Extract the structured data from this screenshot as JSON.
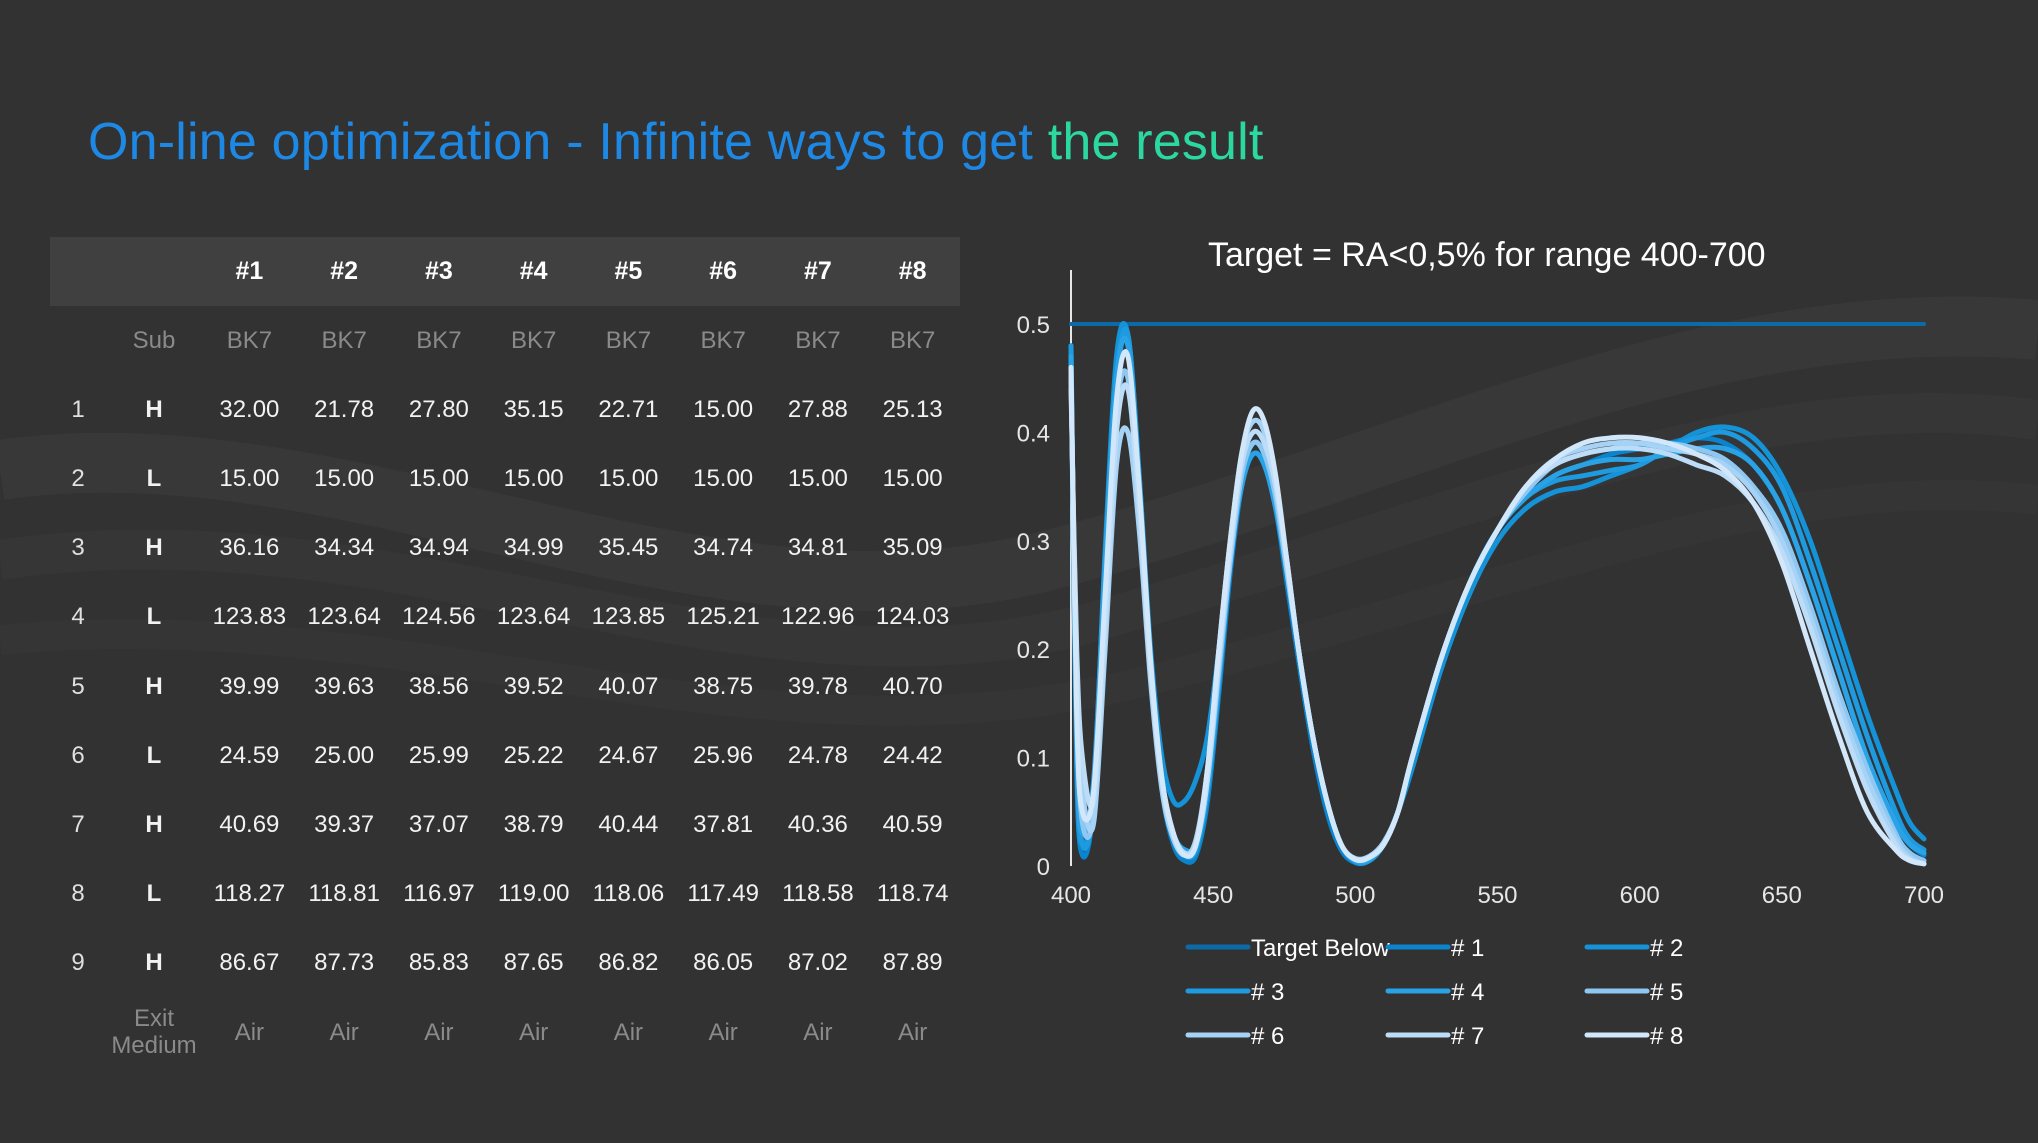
{
  "slide": {
    "title_main": "On-line optimization - Infinite ways to get ",
    "title_accent": "the result"
  },
  "table": {
    "headers": [
      "",
      "",
      "#1",
      "#2",
      "#3",
      "#4",
      "#5",
      "#6",
      "#7",
      "#8"
    ],
    "substrate": {
      "label": "Sub",
      "values": [
        "BK7",
        "BK7",
        "BK7",
        "BK7",
        "BK7",
        "BK7",
        "BK7",
        "BK7"
      ]
    },
    "layers": [
      {
        "num": "1",
        "material": "H",
        "values": [
          "32.00",
          "21.78",
          "27.80",
          "35.15",
          "22.71",
          "15.00",
          "27.88",
          "25.13"
        ]
      },
      {
        "num": "2",
        "material": "L",
        "values": [
          "15.00",
          "15.00",
          "15.00",
          "15.00",
          "15.00",
          "15.00",
          "15.00",
          "15.00"
        ]
      },
      {
        "num": "3",
        "material": "H",
        "values": [
          "36.16",
          "34.34",
          "34.94",
          "34.99",
          "35.45",
          "34.74",
          "34.81",
          "35.09"
        ]
      },
      {
        "num": "4",
        "material": "L",
        "values": [
          "123.83",
          "123.64",
          "124.56",
          "123.64",
          "123.85",
          "125.21",
          "122.96",
          "124.03"
        ]
      },
      {
        "num": "5",
        "material": "H",
        "values": [
          "39.99",
          "39.63",
          "38.56",
          "39.52",
          "40.07",
          "38.75",
          "39.78",
          "40.70"
        ]
      },
      {
        "num": "6",
        "material": "L",
        "values": [
          "24.59",
          "25.00",
          "25.99",
          "25.22",
          "24.67",
          "25.96",
          "24.78",
          "24.42"
        ]
      },
      {
        "num": "7",
        "material": "H",
        "values": [
          "40.69",
          "39.37",
          "37.07",
          "38.79",
          "40.44",
          "37.81",
          "40.36",
          "40.59"
        ]
      },
      {
        "num": "8",
        "material": "L",
        "values": [
          "118.27",
          "118.81",
          "116.97",
          "119.00",
          "118.06",
          "117.49",
          "118.58",
          "118.74"
        ]
      },
      {
        "num": "9",
        "material": "H",
        "values": [
          "86.67",
          "87.73",
          "85.83",
          "87.65",
          "86.82",
          "86.05",
          "87.02",
          "87.89"
        ]
      }
    ],
    "exit": {
      "label_line1": "Exit",
      "label_line2": "Medium",
      "values": [
        "Air",
        "Air",
        "Air",
        "Air",
        "Air",
        "Air",
        "Air",
        "Air"
      ]
    }
  },
  "chart_data": {
    "type": "line",
    "title": "Target = RA<0,5% for range 400-700",
    "xlabel": "",
    "ylabel": "",
    "xlim": [
      400,
      700
    ],
    "ylim": [
      0,
      0.5
    ],
    "x_ticks": [
      400,
      450,
      500,
      550,
      600,
      650,
      700
    ],
    "y_ticks": [
      0,
      0.1,
      0.2,
      0.3,
      0.4,
      0.5
    ],
    "y_tick_labels": [
      "0",
      "0.1",
      "0.2",
      "0.3",
      "0.4",
      "0.5"
    ],
    "grid": false,
    "legend_position": "bottom",
    "series": [
      {
        "name": "Target Below",
        "color": "#0d6aa8",
        "x": [
          400,
          700
        ],
        "y": [
          0.5,
          0.5
        ]
      },
      {
        "name": "# 1",
        "color": "#0a84cc",
        "x": [
          400,
          402,
          404,
          408,
          412,
          416,
          420,
          424,
          428,
          432,
          436,
          440,
          444,
          448,
          452,
          456,
          460,
          464,
          468,
          472,
          476,
          480,
          485,
          490,
          495,
          500,
          505,
          510,
          515,
          520,
          530,
          540,
          550,
          560,
          570,
          580,
          590,
          600,
          610,
          620,
          630,
          640,
          650,
          660,
          670,
          680,
          690,
          695,
          700
        ],
        "y": [
          0.48,
          0.1,
          0.01,
          0.06,
          0.28,
          0.46,
          0.49,
          0.35,
          0.18,
          0.07,
          0.02,
          0.005,
          0.01,
          0.06,
          0.16,
          0.27,
          0.35,
          0.38,
          0.37,
          0.33,
          0.26,
          0.19,
          0.11,
          0.05,
          0.015,
          0.003,
          0.005,
          0.02,
          0.05,
          0.1,
          0.19,
          0.26,
          0.31,
          0.34,
          0.36,
          0.37,
          0.38,
          0.385,
          0.39,
          0.395,
          0.39,
          0.37,
          0.33,
          0.26,
          0.18,
          0.1,
          0.04,
          0.02,
          0.01
        ]
      },
      {
        "name": "# 2",
        "color": "#1493d9",
        "x": [
          400,
          402,
          404,
          408,
          412,
          416,
          420,
          424,
          428,
          432,
          436,
          440,
          444,
          448,
          452,
          456,
          460,
          464,
          468,
          472,
          476,
          480,
          485,
          490,
          495,
          500,
          505,
          510,
          515,
          520,
          530,
          540,
          550,
          560,
          570,
          580,
          590,
          600,
          610,
          620,
          630,
          640,
          650,
          660,
          670,
          680,
          690,
          695,
          700
        ],
        "y": [
          0.47,
          0.09,
          0.02,
          0.07,
          0.29,
          0.47,
          0.49,
          0.36,
          0.2,
          0.1,
          0.06,
          0.06,
          0.08,
          0.12,
          0.2,
          0.29,
          0.36,
          0.39,
          0.38,
          0.34,
          0.27,
          0.2,
          0.12,
          0.06,
          0.02,
          0.005,
          0.006,
          0.02,
          0.05,
          0.09,
          0.18,
          0.25,
          0.3,
          0.33,
          0.345,
          0.35,
          0.36,
          0.37,
          0.385,
          0.4,
          0.405,
          0.395,
          0.36,
          0.3,
          0.22,
          0.14,
          0.07,
          0.04,
          0.025
        ]
      },
      {
        "name": "# 3",
        "color": "#1e9be0",
        "x": [
          400,
          402,
          404,
          408,
          412,
          416,
          420,
          424,
          428,
          432,
          436,
          440,
          444,
          448,
          452,
          456,
          460,
          464,
          468,
          472,
          476,
          480,
          485,
          490,
          495,
          500,
          505,
          510,
          515,
          520,
          530,
          540,
          550,
          560,
          570,
          580,
          590,
          600,
          610,
          620,
          630,
          640,
          650,
          660,
          670,
          680,
          690,
          695,
          700
        ],
        "y": [
          0.48,
          0.12,
          0.02,
          0.06,
          0.27,
          0.45,
          0.49,
          0.36,
          0.19,
          0.08,
          0.03,
          0.01,
          0.015,
          0.07,
          0.17,
          0.28,
          0.36,
          0.39,
          0.38,
          0.34,
          0.27,
          0.2,
          0.12,
          0.06,
          0.02,
          0.004,
          0.005,
          0.02,
          0.05,
          0.1,
          0.19,
          0.26,
          0.31,
          0.34,
          0.355,
          0.36,
          0.365,
          0.37,
          0.385,
          0.395,
          0.4,
          0.385,
          0.35,
          0.28,
          0.2,
          0.12,
          0.05,
          0.025,
          0.015
        ]
      },
      {
        "name": "# 4",
        "color": "#2aa3e6",
        "x": [
          400,
          402,
          404,
          408,
          412,
          416,
          420,
          424,
          428,
          432,
          436,
          440,
          444,
          448,
          452,
          456,
          460,
          464,
          468,
          472,
          476,
          480,
          485,
          490,
          495,
          500,
          505,
          510,
          515,
          520,
          530,
          540,
          550,
          560,
          570,
          580,
          590,
          600,
          610,
          620,
          630,
          640,
          650,
          660,
          670,
          680,
          690,
          695,
          700
        ],
        "y": [
          0.47,
          0.11,
          0.03,
          0.08,
          0.28,
          0.45,
          0.48,
          0.35,
          0.19,
          0.08,
          0.03,
          0.015,
          0.02,
          0.07,
          0.17,
          0.28,
          0.35,
          0.38,
          0.37,
          0.33,
          0.27,
          0.2,
          0.12,
          0.06,
          0.02,
          0.005,
          0.006,
          0.02,
          0.05,
          0.1,
          0.19,
          0.26,
          0.31,
          0.34,
          0.36,
          0.37,
          0.375,
          0.375,
          0.38,
          0.385,
          0.385,
          0.37,
          0.33,
          0.26,
          0.18,
          0.1,
          0.04,
          0.02,
          0.012
        ]
      },
      {
        "name": "# 5",
        "color": "#8ec8f2",
        "x": [
          400,
          402,
          404,
          408,
          412,
          416,
          420,
          424,
          428,
          432,
          436,
          440,
          444,
          448,
          452,
          456,
          460,
          464,
          468,
          472,
          476,
          480,
          485,
          490,
          495,
          500,
          505,
          510,
          515,
          520,
          530,
          540,
          550,
          560,
          570,
          580,
          590,
          600,
          610,
          620,
          630,
          640,
          650,
          660,
          670,
          680,
          690,
          695,
          700
        ],
        "y": [
          0.46,
          0.15,
          0.04,
          0.05,
          0.24,
          0.42,
          0.45,
          0.33,
          0.18,
          0.08,
          0.03,
          0.01,
          0.02,
          0.08,
          0.18,
          0.28,
          0.36,
          0.39,
          0.38,
          0.34,
          0.27,
          0.2,
          0.12,
          0.06,
          0.02,
          0.006,
          0.008,
          0.02,
          0.05,
          0.1,
          0.19,
          0.26,
          0.31,
          0.345,
          0.37,
          0.38,
          0.385,
          0.39,
          0.39,
          0.385,
          0.375,
          0.35,
          0.31,
          0.24,
          0.16,
          0.09,
          0.03,
          0.012,
          0.005
        ]
      },
      {
        "name": "# 6",
        "color": "#a6d3f5",
        "x": [
          400,
          402,
          404,
          408,
          412,
          416,
          420,
          424,
          428,
          432,
          436,
          440,
          444,
          448,
          452,
          456,
          460,
          464,
          468,
          472,
          476,
          480,
          485,
          490,
          495,
          500,
          505,
          510,
          515,
          520,
          530,
          540,
          550,
          560,
          570,
          580,
          590,
          600,
          610,
          620,
          630,
          640,
          650,
          660,
          670,
          680,
          690,
          695,
          700
        ],
        "y": [
          0.45,
          0.18,
          0.07,
          0.04,
          0.2,
          0.37,
          0.4,
          0.31,
          0.17,
          0.07,
          0.025,
          0.01,
          0.025,
          0.09,
          0.2,
          0.3,
          0.38,
          0.41,
          0.4,
          0.35,
          0.28,
          0.2,
          0.12,
          0.06,
          0.02,
          0.007,
          0.009,
          0.022,
          0.05,
          0.1,
          0.19,
          0.26,
          0.31,
          0.35,
          0.375,
          0.385,
          0.39,
          0.39,
          0.385,
          0.38,
          0.37,
          0.345,
          0.3,
          0.23,
          0.15,
          0.08,
          0.025,
          0.008,
          0.002
        ]
      },
      {
        "name": "# 7",
        "color": "#bcdcf7",
        "x": [
          400,
          402,
          404,
          408,
          412,
          416,
          420,
          424,
          428,
          432,
          436,
          440,
          444,
          448,
          452,
          456,
          460,
          464,
          468,
          472,
          476,
          480,
          485,
          490,
          495,
          500,
          505,
          510,
          515,
          520,
          530,
          540,
          550,
          560,
          570,
          580,
          590,
          600,
          610,
          620,
          630,
          640,
          650,
          660,
          670,
          680,
          690,
          695,
          700
        ],
        "y": [
          0.44,
          0.2,
          0.1,
          0.06,
          0.22,
          0.4,
          0.44,
          0.33,
          0.18,
          0.08,
          0.03,
          0.012,
          0.02,
          0.08,
          0.19,
          0.29,
          0.37,
          0.4,
          0.39,
          0.35,
          0.28,
          0.2,
          0.12,
          0.06,
          0.02,
          0.006,
          0.008,
          0.02,
          0.05,
          0.1,
          0.19,
          0.26,
          0.31,
          0.35,
          0.37,
          0.38,
          0.385,
          0.385,
          0.38,
          0.37,
          0.36,
          0.335,
          0.29,
          0.22,
          0.14,
          0.07,
          0.02,
          0.006,
          0.002
        ]
      },
      {
        "name": "# 8",
        "color": "#d2e7fa",
        "x": [
          400,
          402,
          404,
          408,
          412,
          416,
          420,
          424,
          428,
          432,
          436,
          440,
          444,
          448,
          452,
          456,
          460,
          464,
          468,
          472,
          476,
          480,
          485,
          490,
          495,
          500,
          505,
          510,
          515,
          520,
          530,
          540,
          550,
          560,
          570,
          580,
          590,
          600,
          610,
          620,
          630,
          640,
          650,
          660,
          670,
          680,
          690,
          695,
          700
        ],
        "y": [
          0.46,
          0.14,
          0.05,
          0.07,
          0.25,
          0.43,
          0.47,
          0.35,
          0.19,
          0.08,
          0.03,
          0.01,
          0.02,
          0.09,
          0.2,
          0.3,
          0.38,
          0.42,
          0.41,
          0.36,
          0.28,
          0.2,
          0.12,
          0.06,
          0.02,
          0.006,
          0.008,
          0.02,
          0.05,
          0.1,
          0.19,
          0.26,
          0.31,
          0.35,
          0.375,
          0.39,
          0.395,
          0.395,
          0.39,
          0.38,
          0.365,
          0.335,
          0.28,
          0.2,
          0.12,
          0.05,
          0.015,
          0.005,
          0.002
        ]
      }
    ]
  },
  "colors": {
    "background": "#323232",
    "title_blue": "#1e88e5",
    "title_green": "#2bd9a0",
    "header_bg": "#404040",
    "muted_text": "#8a8a8a"
  }
}
